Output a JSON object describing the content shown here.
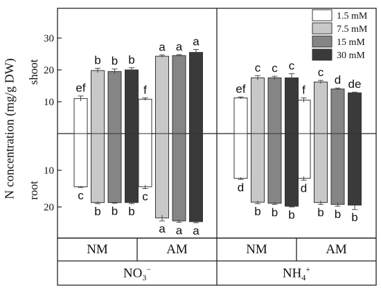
{
  "chart_data": {
    "type": "bar",
    "ylabel": "N concentration (mg/g DW)",
    "panels": [
      {
        "name": "shoot",
        "ylim": [
          0,
          35
        ],
        "ticks": [
          10,
          20,
          30
        ],
        "direction": "up"
      },
      {
        "name": "root",
        "ylim": [
          0,
          25
        ],
        "ticks": [
          10,
          20
        ],
        "direction": "down"
      }
    ],
    "groups": [
      {
        "nitrogen": "NO3-",
        "mycorrhiza": "NM"
      },
      {
        "nitrogen": "NO3-",
        "mycorrhiza": "AM"
      },
      {
        "nitrogen": "NH4+",
        "mycorrhiza": "NM"
      },
      {
        "nitrogen": "NH4+",
        "mycorrhiza": "AM"
      }
    ],
    "category_labels": {
      "nm": "NM",
      "am": "AM"
    },
    "nitrogen_labels": {
      "no3": {
        "base": "NO",
        "sub": "3",
        "sup": "−"
      },
      "nh4": {
        "base": "NH",
        "sub": "4",
        "sup": "+"
      }
    },
    "series": [
      {
        "name": "1.5 mM",
        "color": "#ffffff",
        "shoot": [
          11.0,
          10.8,
          11.2,
          10.5
        ],
        "shoot_err": [
          0.8,
          0.4,
          0.3,
          0.7
        ],
        "shoot_letters": [
          "ef",
          "f",
          "ef",
          "f"
        ],
        "root": [
          14.5,
          14.5,
          12.2,
          12.2
        ],
        "root_err": [
          0.2,
          0.5,
          0.3,
          0.5
        ],
        "root_letters": [
          "c",
          "c",
          "d",
          "d"
        ]
      },
      {
        "name": "7.5 mM",
        "color": "#c8c8c8",
        "shoot": [
          19.8,
          24.3,
          17.5,
          16.2
        ],
        "shoot_err": [
          0.7,
          0.4,
          0.7,
          0.5
        ],
        "shoot_letters": [
          "b",
          "a",
          "c",
          "c"
        ],
        "root": [
          18.8,
          23.0,
          18.7,
          18.8
        ],
        "root_err": [
          0.3,
          0.8,
          0.4,
          0.5
        ],
        "root_letters": [
          "b",
          "a",
          "b",
          "b"
        ]
      },
      {
        "name": "15 mM",
        "color": "#858585",
        "shoot": [
          19.5,
          24.5,
          17.5,
          14.0
        ],
        "shoot_err": [
          0.8,
          0.3,
          0.5,
          0.3
        ],
        "shoot_letters": [
          "b",
          "a",
          "c",
          "d"
        ],
        "root": [
          18.8,
          23.8,
          19.0,
          19.3
        ],
        "root_err": [
          0.2,
          0.4,
          0.3,
          0.5
        ],
        "root_letters": [
          "b",
          "a",
          "b",
          "b"
        ]
      },
      {
        "name": "30 mM",
        "color": "#3a3a3a",
        "shoot": [
          20.0,
          25.5,
          17.5,
          12.8
        ],
        "shoot_err": [
          0.7,
          0.9,
          1.3,
          0.2
        ],
        "shoot_letters": [
          "b",
          "a",
          "c",
          "de"
        ],
        "root": [
          18.8,
          24.0,
          19.8,
          19.5
        ],
        "root_err": [
          0.3,
          0.3,
          0.2,
          1.2
        ],
        "root_letters": [
          "b",
          "a",
          "b",
          "b"
        ]
      }
    ]
  }
}
